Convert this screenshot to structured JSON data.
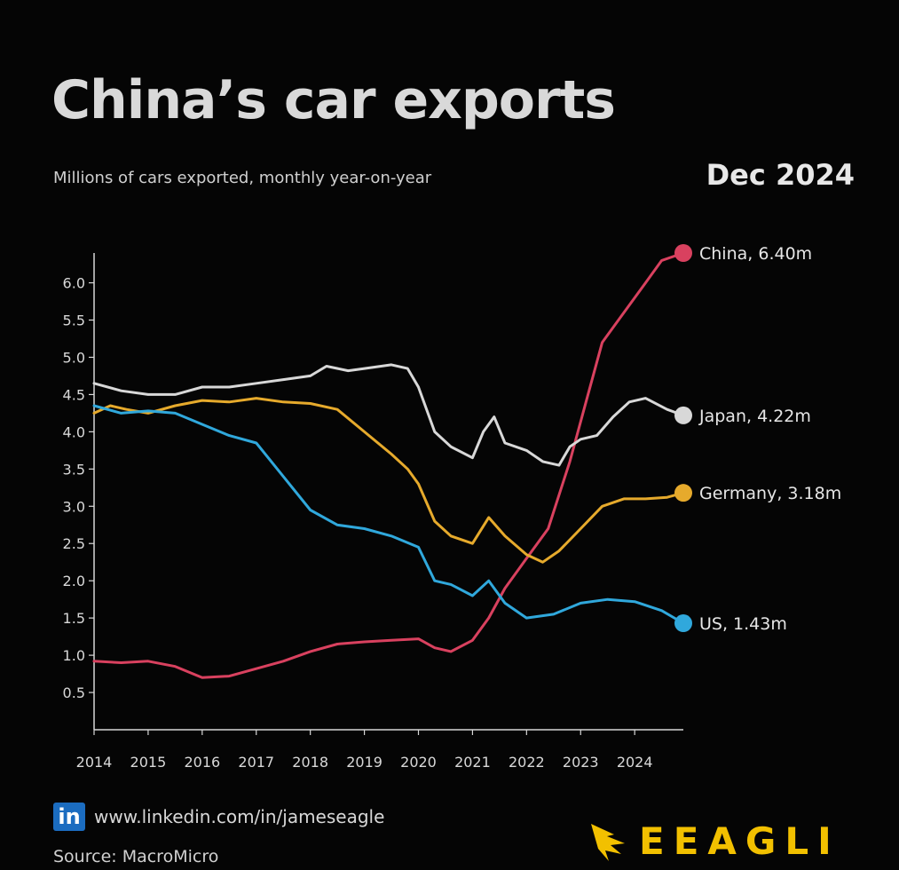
{
  "header": {
    "title": "China’s car exports",
    "subtitle": "Millions of cars exported, monthly year-on-year",
    "date": "Dec 2024"
  },
  "footer": {
    "linkedin_badge": "in",
    "linkedin_url": "www.linkedin.com/in/jameseagle",
    "source": "Source: MacroMicro",
    "brand": "EEAGLI"
  },
  "colors": {
    "background": "#050505",
    "axis": "#d8d8d8",
    "China": "#d9415f",
    "Japan": "#d8d8d8",
    "Germany": "#e6aa2c",
    "US": "#30a8dc",
    "brand": "#f2c000"
  },
  "chart_data": {
    "type": "line",
    "x_ticks": [
      "2014",
      "2015",
      "2016",
      "2017",
      "2018",
      "2019",
      "2020",
      "2021",
      "2022",
      "2023",
      "2024"
    ],
    "y_ticks": [
      "0.5",
      "1.0",
      "1.5",
      "2.0",
      "2.5",
      "3.0",
      "3.5",
      "4.0",
      "4.5",
      "5.0",
      "5.5",
      "6.0"
    ],
    "ylim": [
      0,
      6.4
    ],
    "xlim": [
      2014,
      2024.9
    ],
    "grid": false,
    "series": [
      {
        "name": "China",
        "end_label": "China, 6.40m",
        "points": [
          [
            2014,
            0.92
          ],
          [
            2014.5,
            0.9
          ],
          [
            2015,
            0.92
          ],
          [
            2015.5,
            0.85
          ],
          [
            2016,
            0.7
          ],
          [
            2016.5,
            0.72
          ],
          [
            2017,
            0.82
          ],
          [
            2017.5,
            0.92
          ],
          [
            2018,
            1.05
          ],
          [
            2018.5,
            1.15
          ],
          [
            2019,
            1.18
          ],
          [
            2019.5,
            1.2
          ],
          [
            2020,
            1.22
          ],
          [
            2020.3,
            1.1
          ],
          [
            2020.6,
            1.05
          ],
          [
            2021,
            1.2
          ],
          [
            2021.3,
            1.5
          ],
          [
            2021.6,
            1.9
          ],
          [
            2022,
            2.3
          ],
          [
            2022.4,
            2.7
          ],
          [
            2022.8,
            3.6
          ],
          [
            2023.1,
            4.4
          ],
          [
            2023.4,
            5.2
          ],
          [
            2023.8,
            5.6
          ],
          [
            2024.2,
            6.0
          ],
          [
            2024.5,
            6.3
          ],
          [
            2024.9,
            6.4
          ]
        ]
      },
      {
        "name": "Japan",
        "end_label": "Japan, 4.22m",
        "points": [
          [
            2014,
            4.65
          ],
          [
            2014.5,
            4.55
          ],
          [
            2015,
            4.5
          ],
          [
            2015.5,
            4.5
          ],
          [
            2016,
            4.6
          ],
          [
            2016.5,
            4.6
          ],
          [
            2017,
            4.65
          ],
          [
            2017.5,
            4.7
          ],
          [
            2018,
            4.75
          ],
          [
            2018.3,
            4.88
          ],
          [
            2018.7,
            4.82
          ],
          [
            2019,
            4.85
          ],
          [
            2019.5,
            4.9
          ],
          [
            2019.8,
            4.85
          ],
          [
            2020,
            4.6
          ],
          [
            2020.3,
            4.0
          ],
          [
            2020.6,
            3.8
          ],
          [
            2021,
            3.65
          ],
          [
            2021.2,
            4.0
          ],
          [
            2021.4,
            4.2
          ],
          [
            2021.6,
            3.85
          ],
          [
            2022,
            3.75
          ],
          [
            2022.3,
            3.6
          ],
          [
            2022.6,
            3.55
          ],
          [
            2022.8,
            3.8
          ],
          [
            2023,
            3.9
          ],
          [
            2023.3,
            3.95
          ],
          [
            2023.6,
            4.2
          ],
          [
            2023.9,
            4.4
          ],
          [
            2024.2,
            4.45
          ],
          [
            2024.6,
            4.3
          ],
          [
            2024.9,
            4.22
          ]
        ]
      },
      {
        "name": "Germany",
        "end_label": "Germany, 3.18m",
        "points": [
          [
            2014,
            4.25
          ],
          [
            2014.3,
            4.35
          ],
          [
            2014.6,
            4.3
          ],
          [
            2015,
            4.25
          ],
          [
            2015.5,
            4.35
          ],
          [
            2016,
            4.42
          ],
          [
            2016.5,
            4.4
          ],
          [
            2017,
            4.45
          ],
          [
            2017.5,
            4.4
          ],
          [
            2018,
            4.38
          ],
          [
            2018.5,
            4.3
          ],
          [
            2019,
            4.0
          ],
          [
            2019.5,
            3.7
          ],
          [
            2019.8,
            3.5
          ],
          [
            2020,
            3.3
          ],
          [
            2020.3,
            2.8
          ],
          [
            2020.6,
            2.6
          ],
          [
            2021,
            2.5
          ],
          [
            2021.3,
            2.85
          ],
          [
            2021.6,
            2.6
          ],
          [
            2022,
            2.35
          ],
          [
            2022.3,
            2.25
          ],
          [
            2022.6,
            2.4
          ],
          [
            2023,
            2.7
          ],
          [
            2023.4,
            3.0
          ],
          [
            2023.8,
            3.1
          ],
          [
            2024.2,
            3.1
          ],
          [
            2024.6,
            3.12
          ],
          [
            2024.9,
            3.18
          ]
        ]
      },
      {
        "name": "US",
        "end_label": "US, 1.43m",
        "points": [
          [
            2014,
            4.35
          ],
          [
            2014.5,
            4.25
          ],
          [
            2015,
            4.28
          ],
          [
            2015.5,
            4.25
          ],
          [
            2016,
            4.1
          ],
          [
            2016.5,
            3.95
          ],
          [
            2017,
            3.85
          ],
          [
            2017.5,
            3.4
          ],
          [
            2018,
            2.95
          ],
          [
            2018.5,
            2.75
          ],
          [
            2019,
            2.7
          ],
          [
            2019.5,
            2.6
          ],
          [
            2020,
            2.45
          ],
          [
            2020.3,
            2.0
          ],
          [
            2020.6,
            1.95
          ],
          [
            2021,
            1.8
          ],
          [
            2021.3,
            2.0
          ],
          [
            2021.6,
            1.7
          ],
          [
            2022,
            1.5
          ],
          [
            2022.5,
            1.55
          ],
          [
            2023,
            1.7
          ],
          [
            2023.5,
            1.75
          ],
          [
            2024,
            1.72
          ],
          [
            2024.5,
            1.6
          ],
          [
            2024.9,
            1.43
          ]
        ]
      }
    ]
  }
}
